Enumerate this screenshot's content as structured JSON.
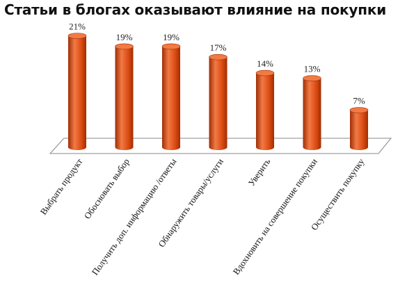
{
  "chart_data": {
    "type": "bar",
    "title": "Статьи в блогах оказывают влияние на покупки",
    "categories": [
      "Выбрать продукт",
      "Обосновать выбор",
      "Получить доп. информацию /ответы",
      "Обнаружить товары/услуги",
      "Уверить",
      "Вдохновить на совершение покупки",
      "Осуществить покупку"
    ],
    "values": [
      21,
      19,
      19,
      17,
      14,
      13,
      7
    ],
    "value_labels": [
      "21%",
      "19%",
      "19%",
      "17%",
      "14%",
      "13%",
      "7%"
    ],
    "ylim": [
      0,
      22
    ],
    "grid": false,
    "bar_shape": "cylinder",
    "colors": {
      "bar": "#d9480f",
      "bar_dark": "#9e2e05",
      "bar_light": "#f27a45",
      "floor": "#ffffff",
      "floor_edge": "#888888"
    }
  }
}
